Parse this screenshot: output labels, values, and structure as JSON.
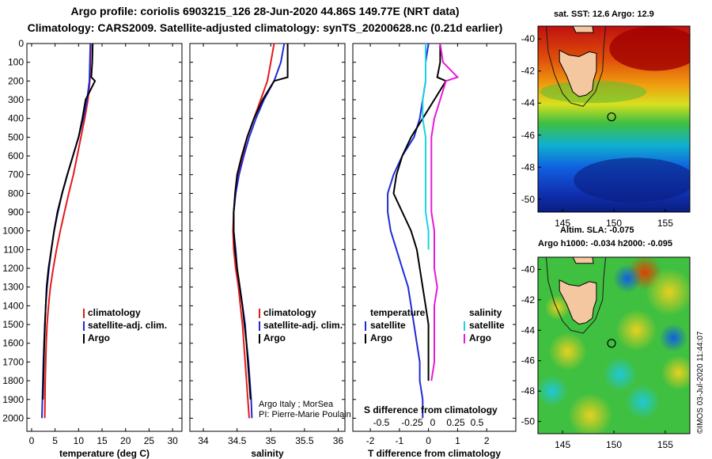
{
  "header": {
    "line1": "Argo profile: coriolis 6903215_126 28-Jun-2020 44.86S 149.77E (NRT data)",
    "line2": "Climatology: CARS2009. Satellite-adjusted climatology: synTS_20200628.nc (0.21d earlier)"
  },
  "colors": {
    "climatology": "#e41a1c",
    "satellite": "#1f2bd6",
    "argo": "#000000",
    "sal_satellite": "#19d3e6",
    "sal_argo": "#e61ad6",
    "land": "#f4c7a1"
  },
  "depth_axis": {
    "ticks": [
      0,
      100,
      200,
      300,
      400,
      500,
      600,
      700,
      800,
      900,
      1000,
      1100,
      1200,
      1300,
      1400,
      1500,
      1600,
      1700,
      1800,
      1900,
      2000
    ],
    "range": [
      0,
      2070
    ]
  },
  "chart_data": [
    {
      "type": "line",
      "name": "temperature-panel",
      "xlabel": "temperature (deg C)",
      "xlim": [
        -1,
        32
      ],
      "xticks": [
        0,
        5,
        10,
        15,
        20,
        25,
        30
      ],
      "ylim": [
        2070,
        0
      ],
      "legend": [
        "climatology",
        "satellite-adj. clim.",
        "Argo"
      ],
      "series": [
        {
          "name": "climatology",
          "x": [
            12.6,
            12.5,
            12.4,
            12.0,
            11.3,
            10.5,
            9.7,
            8.9,
            7.9,
            7.0,
            6.1,
            5.3,
            4.6,
            4.0,
            3.6,
            3.3,
            3.1,
            3.0,
            2.9,
            2.85,
            2.8
          ],
          "y": [
            0,
            100,
            200,
            300,
            400,
            500,
            600,
            700,
            800,
            900,
            1000,
            1100,
            1200,
            1300,
            1400,
            1500,
            1600,
            1700,
            1800,
            1900,
            2000
          ]
        },
        {
          "name": "satellite-adj. clim.",
          "x": [
            12.5,
            12.4,
            12.3,
            11.8,
            11.0,
            10.0,
            8.8,
            7.6,
            6.5,
            5.6,
            4.8,
            4.2,
            3.7,
            3.3,
            3.0,
            2.8,
            2.65,
            2.5,
            2.4,
            2.3,
            2.2
          ],
          "y": [
            0,
            100,
            200,
            300,
            400,
            500,
            600,
            700,
            800,
            900,
            1000,
            1100,
            1200,
            1300,
            1400,
            1500,
            1600,
            1700,
            1800,
            1900,
            2000
          ]
        },
        {
          "name": "Argo",
          "x": [
            13.0,
            12.9,
            12.7,
            13.5,
            11.5,
            10.8,
            10.0,
            8.8,
            7.6,
            6.5,
            5.5,
            4.8,
            4.2,
            3.6,
            3.2,
            3.0,
            2.85,
            2.7,
            2.6,
            2.5,
            2.4
          ],
          "y": [
            0,
            100,
            180,
            200,
            300,
            400,
            500,
            600,
            700,
            800,
            900,
            1000,
            1100,
            1200,
            1300,
            1400,
            1500,
            1600,
            1700,
            1800,
            1900
          ]
        }
      ]
    },
    {
      "type": "line",
      "name": "salinity-panel",
      "xlabel": "salinity",
      "xlim": [
        33.8,
        36.1
      ],
      "xticks": [
        34,
        34.5,
        35,
        35.5,
        36
      ],
      "xticklabels": [
        "34",
        "34.5",
        "35",
        "35.5",
        "36"
      ],
      "ylim": [
        2070,
        0
      ],
      "legend": [
        "climatology",
        "satellite-adj. clim.",
        "Argo"
      ],
      "series": [
        {
          "name": "climatology",
          "x": [
            35.05,
            35.0,
            34.95,
            34.85,
            34.75,
            34.65,
            34.58,
            34.52,
            34.48,
            34.45,
            34.44,
            34.45,
            34.48,
            34.52,
            34.55,
            34.58,
            34.6,
            34.62,
            34.64,
            34.66,
            34.68
          ],
          "y": [
            0,
            100,
            200,
            300,
            400,
            500,
            600,
            700,
            800,
            900,
            1000,
            1100,
            1200,
            1300,
            1400,
            1500,
            1600,
            1700,
            1800,
            1900,
            2000
          ]
        },
        {
          "name": "satellite-adj. clim.",
          "x": [
            35.2,
            35.15,
            35.05,
            34.9,
            34.78,
            34.68,
            34.6,
            34.53,
            34.48,
            34.45,
            34.45,
            34.48,
            34.5,
            34.54,
            34.58,
            34.62,
            34.64,
            34.67,
            34.69,
            34.71,
            34.72
          ],
          "y": [
            0,
            100,
            200,
            300,
            400,
            500,
            600,
            700,
            800,
            900,
            1000,
            1100,
            1200,
            1300,
            1400,
            1500,
            1600,
            1700,
            1800,
            1900,
            2000
          ]
        },
        {
          "name": "Argo",
          "x": [
            35.25,
            35.25,
            35.25,
            35.05,
            34.88,
            34.75,
            34.65,
            34.57,
            34.5,
            34.47,
            34.45,
            34.45,
            34.47,
            34.5,
            34.54,
            34.58,
            34.61,
            34.64,
            34.66,
            34.68,
            34.7
          ],
          "y": [
            0,
            100,
            180,
            200,
            300,
            400,
            500,
            600,
            700,
            800,
            900,
            1000,
            1100,
            1200,
            1300,
            1400,
            1500,
            1600,
            1700,
            1800,
            1900
          ]
        }
      ]
    },
    {
      "type": "line",
      "name": "difference-panel",
      "xlabel": "T difference from climatology",
      "xlim": [
        -2.6,
        3.0
      ],
      "xticks": [
        -2,
        -1,
        0,
        1,
        2
      ],
      "ylim": [
        2070,
        0
      ],
      "secondary_axis": {
        "label": "S difference from climatology",
        "ticks": [
          -0.5,
          -0.25,
          0,
          0.25,
          0.5
        ],
        "ticklabels": [
          "-0.5",
          "-0.25",
          "0",
          "0.25",
          "0.5"
        ]
      },
      "legend": {
        "temperature": [
          "satellite",
          "Argo"
        ],
        "salinity": [
          "satellite",
          "Argo"
        ]
      },
      "series": [
        {
          "name": "satellite",
          "group": "temperature",
          "x": [
            0.0,
            -0.1,
            -0.1,
            -0.2,
            -0.3,
            -0.5,
            -0.9,
            -1.2,
            -1.4,
            -1.4,
            -1.3,
            -1.1,
            -0.9,
            -0.7,
            -0.6,
            -0.5,
            -0.4,
            -0.3,
            -0.3,
            -0.2,
            -0.2
          ],
          "y": [
            0,
            100,
            200,
            300,
            400,
            500,
            600,
            700,
            800,
            900,
            1000,
            1100,
            1200,
            1300,
            1400,
            1500,
            1600,
            1700,
            1800,
            1900,
            2000
          ]
        },
        {
          "name": "Argo",
          "group": "temperature",
          "x": [
            0.4,
            0.4,
            0.3,
            0.6,
            0.2,
            -0.2,
            -0.6,
            -0.9,
            -1.1,
            -1.2,
            -0.9,
            -0.6,
            -0.4,
            -0.3,
            -0.2,
            -0.1,
            0.0,
            0.0,
            0.0,
            0.0
          ],
          "y": [
            0,
            100,
            180,
            200,
            300,
            400,
            500,
            600,
            700,
            800,
            900,
            1000,
            1100,
            1200,
            1300,
            1400,
            1500,
            1600,
            1700,
            1800
          ]
        },
        {
          "name": "satellite",
          "group": "salinity",
          "x": [
            -0.1,
            -0.1,
            -0.1,
            -0.2,
            -0.2,
            -0.1,
            -0.1,
            -0.1,
            -0.1,
            -0.1,
            0.0,
            0.0
          ],
          "y": [
            0,
            100,
            200,
            300,
            400,
            500,
            600,
            700,
            800,
            900,
            1000,
            1100
          ]
        },
        {
          "name": "Argo",
          "group": "salinity",
          "x": [
            0.4,
            0.5,
            1.0,
            0.6,
            0.4,
            0.2,
            0.1,
            0.1,
            0.1,
            0.1,
            0.1,
            0.2,
            0.2,
            0.2,
            0.3,
            0.2,
            0.2,
            0.2,
            0.2,
            0.1
          ],
          "y": [
            0,
            100,
            180,
            200,
            300,
            400,
            500,
            600,
            700,
            800,
            900,
            1000,
            1100,
            1200,
            1300,
            1400,
            1500,
            1600,
            1700,
            1800
          ]
        }
      ]
    },
    {
      "type": "heatmap",
      "name": "sst-map",
      "title": "sat. SST: 12.6 Argo: 12.9",
      "xticks": [
        145,
        150,
        155
      ],
      "yticks": [
        -40,
        -42,
        -44,
        -46,
        -48,
        -50
      ],
      "xlim": [
        142.6,
        157.4
      ],
      "ylim": [
        -50.8,
        -39.2
      ],
      "marker": {
        "lon": 149.77,
        "lat": -44.86
      }
    },
    {
      "type": "heatmap",
      "name": "sla-map",
      "title": "Altim. SLA: -0.075",
      "subtitle": "Argo h1000: -0.034 h2000: -0.095",
      "xticks": [
        145,
        150,
        155
      ],
      "yticks": [
        -40,
        -42,
        -44,
        -46,
        -48,
        -50
      ],
      "xlim": [
        142.6,
        157.4
      ],
      "ylim": [
        -50.8,
        -39.2
      ],
      "marker": {
        "lon": 149.77,
        "lat": -44.86
      }
    }
  ],
  "credits": {
    "line1": "Argo Italy ; MorSea",
    "line2": "PI: Pierre-Marie Poulain",
    "vertical": "©IMOS 03-Jul-2020 11:44:07"
  }
}
